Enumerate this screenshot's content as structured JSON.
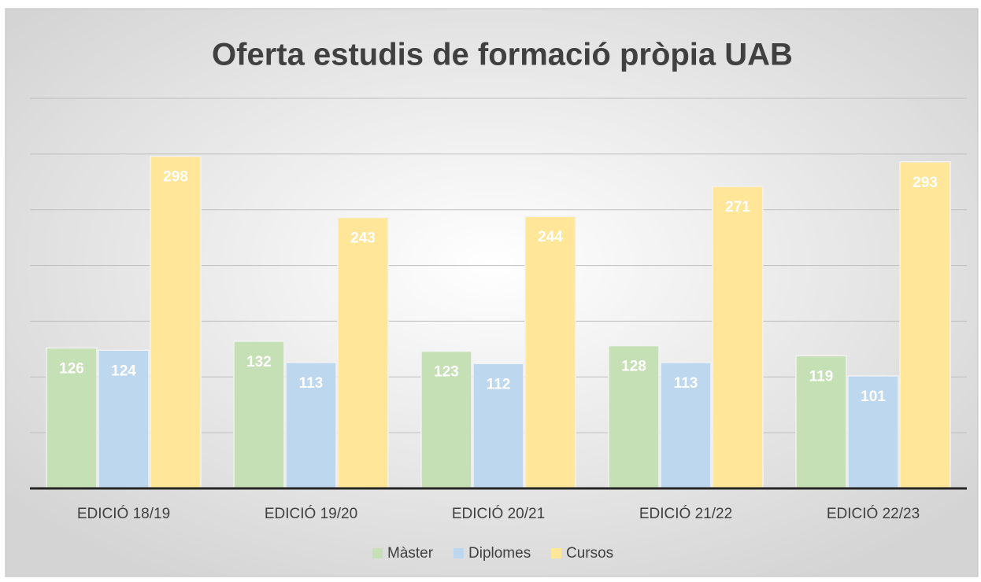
{
  "chart_data": {
    "type": "bar",
    "title": "Oferta estudis de formació pròpia UAB",
    "categories": [
      "EDICIÓ 18/19",
      "EDICIÓ 19/20",
      "EDICIÓ 20/21",
      "EDICIÓ 21/22",
      "EDICIÓ 22/23"
    ],
    "series": [
      {
        "name": "Màster",
        "color": "#c5e0b4",
        "values": [
          126,
          132,
          123,
          128,
          119
        ]
      },
      {
        "name": "Diplomes",
        "color": "#bdd7ee",
        "values": [
          124,
          113,
          112,
          113,
          101
        ]
      },
      {
        "name": "Cursos",
        "color": "#ffe699",
        "values": [
          298,
          243,
          244,
          271,
          293
        ]
      }
    ],
    "ylim": [
      0,
      350
    ],
    "yticks": [
      0,
      50,
      100,
      150,
      200,
      250,
      300,
      350
    ],
    "grid": true,
    "legend": "bottom"
  }
}
